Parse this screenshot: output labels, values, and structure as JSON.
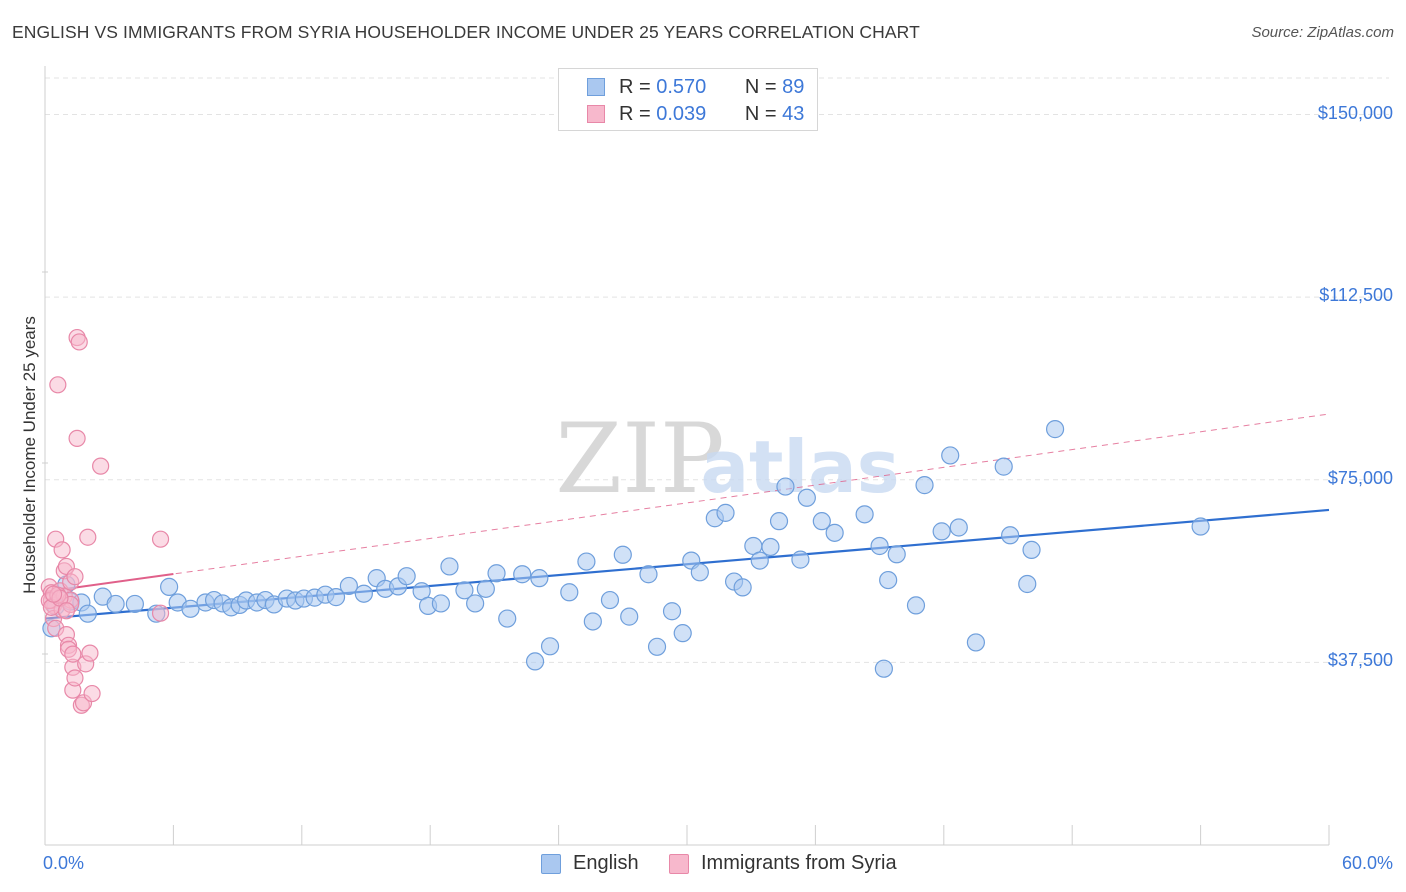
{
  "title": "ENGLISH VS IMMIGRANTS FROM SYRIA HOUSEHOLDER INCOME UNDER 25 YEARS CORRELATION CHART",
  "source": "Source: ZipAtlas.com",
  "watermark": {
    "zip": "ZIP",
    "atlas": "atlas"
  },
  "legend": {
    "rows": [
      {
        "r_label": "R =",
        "r_value": "0.570",
        "n_label": "N =",
        "n_value": "89"
      },
      {
        "r_label": "R =",
        "r_value": "0.039",
        "n_label": "N =",
        "n_value": "43"
      }
    ]
  },
  "colors": {
    "english_fill": "#aac8f0",
    "english_stroke": "#6f9fdc",
    "english_line": "#2f6fd0",
    "syria_fill": "#f7b8cc",
    "syria_stroke": "#e888a8",
    "syria_line": "#e0608a",
    "tick_text": "#3d78d8",
    "grid": "#e3e3e3"
  },
  "chart_data": {
    "type": "scatter",
    "xlabel": "",
    "ylabel": "Householder Income Under 25 years",
    "xlim": [
      0,
      60
    ],
    "ylim": [
      0,
      157500
    ],
    "x_tick_labels": [
      "0.0%",
      "60.0%"
    ],
    "y_ticks": [
      37500,
      75000,
      112500,
      150000
    ],
    "y_tick_labels": [
      "$37,500",
      "$75,000",
      "$112,500",
      "$150,000"
    ],
    "grid": true,
    "legend_position": "top-center",
    "series": [
      {
        "name": "English",
        "trend": {
          "x": [
            0,
            60
          ],
          "y": [
            46500,
            68800
          ],
          "style": "solid"
        },
        "points": [
          [
            0.3,
            44500
          ],
          [
            0.5,
            49000
          ],
          [
            1.0,
            53500
          ],
          [
            1.2,
            50000
          ],
          [
            1.7,
            49800
          ],
          [
            2.0,
            47500
          ],
          [
            2.7,
            51000
          ],
          [
            3.3,
            49500
          ],
          [
            4.2,
            49500
          ],
          [
            5.2,
            47500
          ],
          [
            5.8,
            53000
          ],
          [
            6.2,
            49800
          ],
          [
            6.8,
            48500
          ],
          [
            7.5,
            49800
          ],
          [
            7.9,
            50300
          ],
          [
            8.3,
            49600
          ],
          [
            8.7,
            48800
          ],
          [
            9.1,
            49300
          ],
          [
            9.4,
            50200
          ],
          [
            9.9,
            49800
          ],
          [
            10.3,
            50300
          ],
          [
            10.7,
            49400
          ],
          [
            11.3,
            50600
          ],
          [
            11.7,
            50200
          ],
          [
            12.1,
            50600
          ],
          [
            12.6,
            50800
          ],
          [
            13.1,
            51400
          ],
          [
            13.6,
            50900
          ],
          [
            14.2,
            53200
          ],
          [
            14.9,
            51600
          ],
          [
            15.5,
            54800
          ],
          [
            15.9,
            52600
          ],
          [
            16.5,
            53100
          ],
          [
            16.9,
            55200
          ],
          [
            17.6,
            52100
          ],
          [
            17.9,
            49100
          ],
          [
            18.5,
            49600
          ],
          [
            18.9,
            57200
          ],
          [
            19.6,
            52300
          ],
          [
            20.1,
            49600
          ],
          [
            20.6,
            52600
          ],
          [
            21.1,
            55800
          ],
          [
            21.6,
            46500
          ],
          [
            22.3,
            55600
          ],
          [
            22.9,
            37700
          ],
          [
            23.1,
            54800
          ],
          [
            23.6,
            40800
          ],
          [
            24.5,
            51900
          ],
          [
            25.3,
            58200
          ],
          [
            25.6,
            45900
          ],
          [
            26.4,
            50300
          ],
          [
            27.0,
            59600
          ],
          [
            27.3,
            46900
          ],
          [
            28.2,
            55600
          ],
          [
            28.6,
            40700
          ],
          [
            29.3,
            48000
          ],
          [
            29.8,
            43500
          ],
          [
            30.2,
            58400
          ],
          [
            30.6,
            56000
          ],
          [
            31.3,
            67100
          ],
          [
            31.8,
            68200
          ],
          [
            32.2,
            54100
          ],
          [
            32.6,
            52900
          ],
          [
            33.1,
            61400
          ],
          [
            33.4,
            58400
          ],
          [
            33.9,
            61200
          ],
          [
            34.3,
            66500
          ],
          [
            34.6,
            73600
          ],
          [
            35.3,
            58600
          ],
          [
            35.6,
            71300
          ],
          [
            36.3,
            66500
          ],
          [
            36.9,
            64100
          ],
          [
            38.3,
            67900
          ],
          [
            39.0,
            61400
          ],
          [
            39.2,
            36200
          ],
          [
            39.4,
            54400
          ],
          [
            39.8,
            59700
          ],
          [
            40.7,
            49200
          ],
          [
            41.1,
            73900
          ],
          [
            41.9,
            64400
          ],
          [
            42.3,
            80000
          ],
          [
            42.7,
            65200
          ],
          [
            43.5,
            41600
          ],
          [
            44.8,
            77700
          ],
          [
            45.1,
            63600
          ],
          [
            45.9,
            53600
          ],
          [
            46.1,
            60600
          ],
          [
            47.2,
            85400
          ],
          [
            54.0,
            65400
          ]
        ]
      },
      {
        "name": "Immigrants from Syria",
        "trend": {
          "x": [
            0,
            60
          ],
          "y": [
            52000,
            88500
          ],
          "style": "dashed",
          "solid_segment_x": [
            0,
            6
          ]
        },
        "points": [
          [
            0.2,
            53000
          ],
          [
            0.3,
            51800
          ],
          [
            0.3,
            50200
          ],
          [
            0.4,
            49200
          ],
          [
            0.4,
            46500
          ],
          [
            0.5,
            44500
          ],
          [
            0.5,
            62800
          ],
          [
            0.6,
            94500
          ],
          [
            0.7,
            52200
          ],
          [
            0.8,
            48300
          ],
          [
            0.8,
            60600
          ],
          [
            0.9,
            56300
          ],
          [
            0.9,
            51100
          ],
          [
            1.0,
            57200
          ],
          [
            1.0,
            43200
          ],
          [
            1.1,
            41000
          ],
          [
            1.1,
            40200
          ],
          [
            1.2,
            54000
          ],
          [
            1.2,
            50300
          ],
          [
            1.2,
            49400
          ],
          [
            1.3,
            36500
          ],
          [
            1.3,
            31800
          ],
          [
            1.3,
            39200
          ],
          [
            1.4,
            34300
          ],
          [
            1.4,
            55100
          ],
          [
            1.5,
            83500
          ],
          [
            1.5,
            104200
          ],
          [
            1.6,
            103300
          ],
          [
            1.7,
            28700
          ],
          [
            1.8,
            29200
          ],
          [
            1.9,
            37200
          ],
          [
            2.0,
            63200
          ],
          [
            2.1,
            39400
          ],
          [
            2.2,
            31100
          ],
          [
            2.6,
            77800
          ],
          [
            5.4,
            62800
          ],
          [
            5.4,
            47600
          ],
          [
            0.2,
            50200
          ],
          [
            0.3,
            48800
          ],
          [
            0.6,
            51300
          ],
          [
            0.7,
            50700
          ],
          [
            1.0,
            48100
          ],
          [
            0.4,
            51500
          ]
        ]
      }
    ]
  },
  "bottom_legend": [
    "English",
    "Immigrants from Syria"
  ]
}
